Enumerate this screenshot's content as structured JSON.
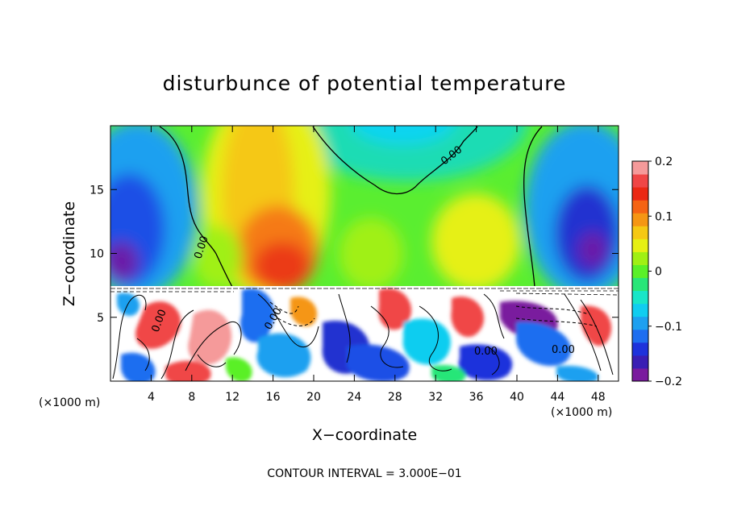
{
  "chart_data": {
    "type": "heatmap",
    "title": "disturbunce of potential temperature",
    "xlabel": "X−coordinate",
    "ylabel": "Z−coordinate",
    "x_unit_left": "(×1000 m)",
    "x_unit_right": "(×1000 m)",
    "xlim": [
      0,
      50
    ],
    "ylim": [
      0,
      20
    ],
    "x_ticks": [
      4,
      8,
      12,
      16,
      20,
      24,
      28,
      32,
      36,
      40,
      44,
      48
    ],
    "y_ticks": [
      5,
      10,
      15
    ],
    "colorbar": {
      "range": [
        -0.2,
        0.2
      ],
      "ticks": [
        0.2,
        0.1,
        0,
        -0.1,
        -0.2
      ],
      "tick_labels": [
        "0.2",
        "0.1",
        "0",
        "−0.1",
        "−0.2"
      ],
      "colors": [
        "#7a1a9e",
        "#3a1eb4",
        "#1e32dc",
        "#1e6ef0",
        "#1ea0f0",
        "#10cdf0",
        "#18e6c8",
        "#28e678",
        "#5af028",
        "#a0f014",
        "#e6f014",
        "#f5c814",
        "#f59614",
        "#f56414",
        "#eb2814",
        "#f04646",
        "#f59a9a"
      ]
    },
    "contour_labels": [
      "0.00",
      "0.00",
      "0.00",
      "0.00",
      "0.00",
      "0.00"
    ],
    "contour_interval_text": "CONTOUR INTERVAL = 3.000E−01",
    "layer_top_z": 7.3
  }
}
